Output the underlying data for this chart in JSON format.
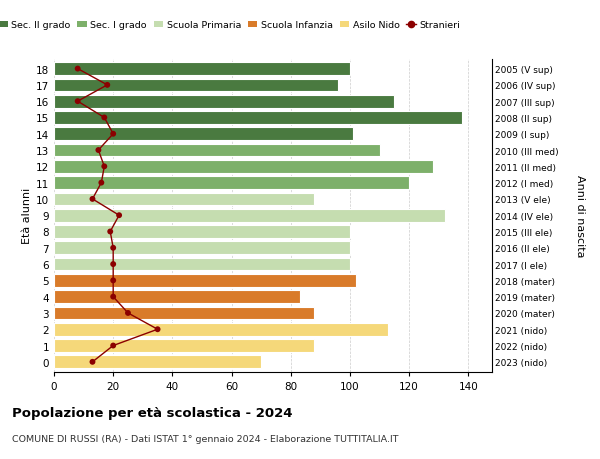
{
  "ages": [
    18,
    17,
    16,
    15,
    14,
    13,
    12,
    11,
    10,
    9,
    8,
    7,
    6,
    5,
    4,
    3,
    2,
    1,
    0
  ],
  "years": [
    "2005 (V sup)",
    "2006 (IV sup)",
    "2007 (III sup)",
    "2008 (II sup)",
    "2009 (I sup)",
    "2010 (III med)",
    "2011 (II med)",
    "2012 (I med)",
    "2013 (V ele)",
    "2014 (IV ele)",
    "2015 (III ele)",
    "2016 (II ele)",
    "2017 (I ele)",
    "2018 (mater)",
    "2019 (mater)",
    "2020 (mater)",
    "2021 (nido)",
    "2022 (nido)",
    "2023 (nido)"
  ],
  "bar_values": [
    100,
    96,
    115,
    138,
    101,
    110,
    128,
    120,
    88,
    132,
    100,
    100,
    100,
    102,
    83,
    88,
    113,
    88,
    70
  ],
  "bar_colors": [
    "#4a7a40",
    "#4a7a40",
    "#4a7a40",
    "#4a7a40",
    "#4a7a40",
    "#7db06a",
    "#7db06a",
    "#7db06a",
    "#c5ddb0",
    "#c5ddb0",
    "#c5ddb0",
    "#c5ddb0",
    "#c5ddb0",
    "#d97b2a",
    "#d97b2a",
    "#d97b2a",
    "#f5d87a",
    "#f5d87a",
    "#f5d87a"
  ],
  "stranieri": [
    8,
    18,
    8,
    17,
    20,
    15,
    17,
    16,
    13,
    22,
    19,
    20,
    20,
    20,
    20,
    25,
    35,
    20,
    13
  ],
  "stranieri_color": "#8b0000",
  "legend_labels": [
    "Sec. II grado",
    "Sec. I grado",
    "Scuola Primaria",
    "Scuola Infanzia",
    "Asilo Nido",
    "Stranieri"
  ],
  "legend_colors": [
    "#4a7a40",
    "#7db06a",
    "#c5ddb0",
    "#d97b2a",
    "#f5d87a",
    "#8b0000"
  ],
  "title": "Popolazione per età scolastica - 2024",
  "subtitle": "COMUNE DI RUSSI (RA) - Dati ISTAT 1° gennaio 2024 - Elaborazione TUTTITALIA.IT",
  "ylabel": "Età alunni",
  "ylabel2": "Anni di nascita",
  "xlim": [
    0,
    148
  ],
  "background_color": "#ffffff",
  "bar_height": 0.78,
  "grid_color": "#cccccc"
}
